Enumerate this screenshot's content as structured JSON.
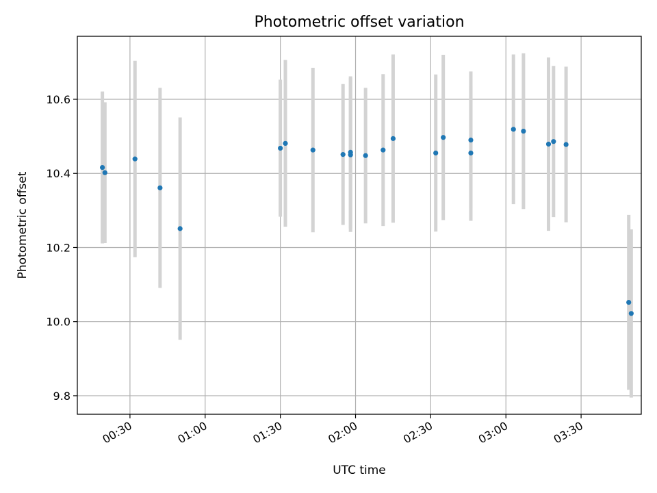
{
  "chart_data": {
    "type": "scatter",
    "title": "Photometric offset variation",
    "xlabel": "UTC time",
    "ylabel": "Photometric offset",
    "x_unit": "UTC time (HH:MM)",
    "xlim": [
      "00:09",
      "03:54"
    ],
    "ylim": [
      9.75,
      10.77
    ],
    "x_ticks": [
      "00:30",
      "01:00",
      "01:30",
      "02:00",
      "02:30",
      "03:00",
      "03:30"
    ],
    "y_ticks": [
      "9.8",
      "10.0",
      "10.2",
      "10.4",
      "10.6"
    ],
    "grid": true,
    "marker_color": "#1f77b4",
    "errorbar_color": "#d3d3d3",
    "points": [
      {
        "x": "00:19",
        "y": 10.416,
        "err": 0.205
      },
      {
        "x": "00:20",
        "y": 10.402,
        "err": 0.19
      },
      {
        "x": "00:32",
        "y": 10.439,
        "err": 0.265
      },
      {
        "x": "00:42",
        "y": 10.361,
        "err": 0.27
      },
      {
        "x": "00:50",
        "y": 10.251,
        "err": 0.3
      },
      {
        "x": "01:30",
        "y": 10.468,
        "err": 0.185
      },
      {
        "x": "01:32",
        "y": 10.481,
        "err": 0.225
      },
      {
        "x": "01:43",
        "y": 10.463,
        "err": 0.222
      },
      {
        "x": "01:55",
        "y": 10.451,
        "err": 0.19
      },
      {
        "x": "01:58",
        "y": 10.457,
        "err": 0.205
      },
      {
        "x": "01:58",
        "y": 10.45,
        "err": 0.208
      },
      {
        "x": "02:04",
        "y": 10.448,
        "err": 0.183
      },
      {
        "x": "02:11",
        "y": 10.463,
        "err": 0.205
      },
      {
        "x": "02:15",
        "y": 10.494,
        "err": 0.227
      },
      {
        "x": "02:32",
        "y": 10.455,
        "err": 0.212
      },
      {
        "x": "02:35",
        "y": 10.497,
        "err": 0.223
      },
      {
        "x": "02:46",
        "y": 10.455,
        "err": 0.183
      },
      {
        "x": "02:46",
        "y": 10.49,
        "err": 0.185
      },
      {
        "x": "03:03",
        "y": 10.519,
        "err": 0.202
      },
      {
        "x": "03:07",
        "y": 10.514,
        "err": 0.21
      },
      {
        "x": "03:17",
        "y": 10.479,
        "err": 0.234
      },
      {
        "x": "03:19",
        "y": 10.486,
        "err": 0.204
      },
      {
        "x": "03:24",
        "y": 10.478,
        "err": 0.21
      },
      {
        "x": "03:49",
        "y": 10.052,
        "err": 0.236
      },
      {
        "x": "03:50",
        "y": 10.022,
        "err": 0.227
      }
    ]
  }
}
